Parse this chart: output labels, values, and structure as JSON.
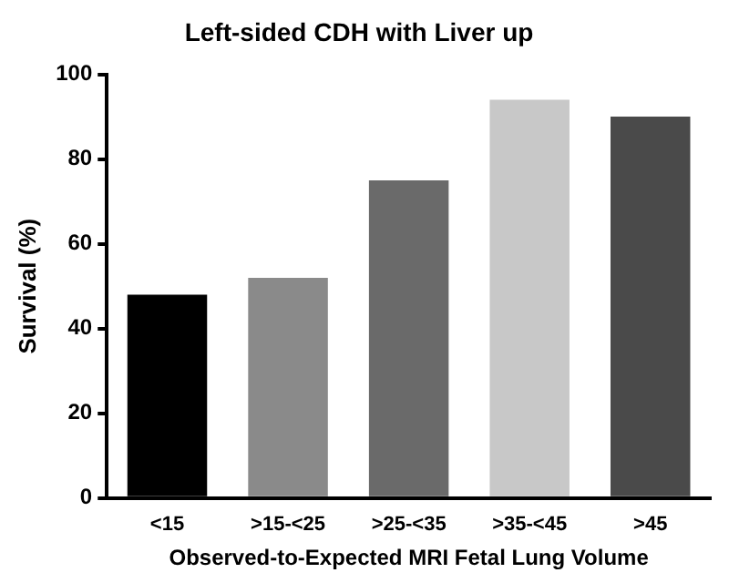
{
  "chart_data": {
    "type": "bar",
    "title": "Left-sided CDH with Liver up",
    "xlabel": "Observed-to-Expected MRI Fetal Lung Volume",
    "ylabel": "Survival (%)",
    "categories": [
      "<15",
      ">15-<25",
      ">25-<35",
      ">35-<45",
      ">45"
    ],
    "values": [
      48,
      52,
      75,
      94,
      90
    ],
    "colors": [
      "#000000",
      "#8a8a8a",
      "#6a6a6a",
      "#c8c8c8",
      "#4a4a4a"
    ],
    "ylim": [
      0,
      100
    ],
    "yticks": [
      0,
      20,
      40,
      60,
      80,
      100
    ],
    "grid": false,
    "legend": false
  }
}
